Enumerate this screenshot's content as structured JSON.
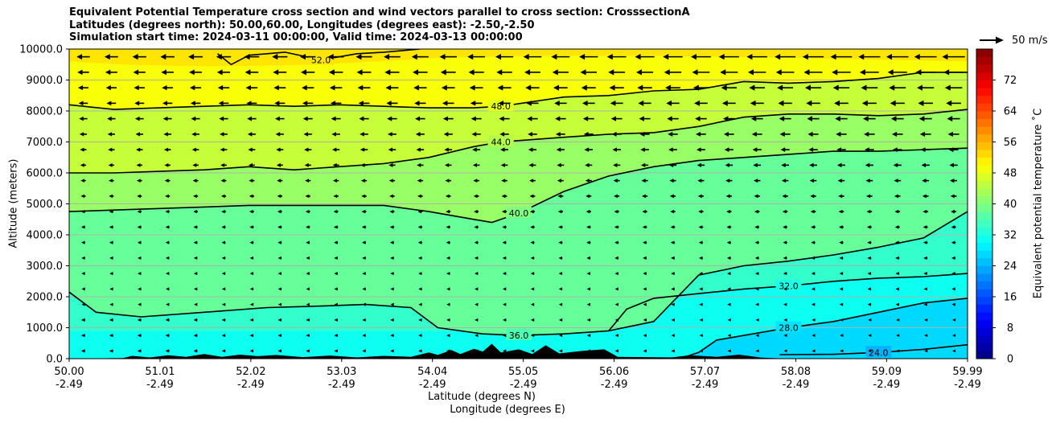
{
  "chart_data": {
    "type": "contourf",
    "title_lines": [
      "Equivalent Potential Temperature cross section and wind vectors parallel to cross section: CrosssectionA",
      "Latitudes (degrees north): 50.00,60.00, Longitudes (degrees east): -2.50,-2.50",
      "Simulation start time: 2024-03-11 00:00:00, Valid time: 2024-03-13 00:00:00"
    ],
    "ylabel": "Altitude (meters)",
    "xlabel_lat": "Latitude (degrees N)",
    "xlabel_lon": "Longitude (degrees E)",
    "ylim": [
      0,
      10000
    ],
    "y_ticks": [
      "0.0",
      "1000.0",
      "2000.0",
      "3000.0",
      "4000.0",
      "5000.0",
      "6000.0",
      "7000.0",
      "8000.0",
      "9000.0",
      "10000.0"
    ],
    "y_tick_values": [
      0,
      1000,
      2000,
      3000,
      4000,
      5000,
      6000,
      7000,
      8000,
      9000,
      10000
    ],
    "xlim": [
      50.0,
      59.99
    ],
    "x_tick_values": [
      50.0,
      51.01,
      52.02,
      53.03,
      54.04,
      55.05,
      56.06,
      57.07,
      58.08,
      59.09,
      59.99
    ],
    "x_ticks_lat": [
      "50.00",
      "51.01",
      "52.02",
      "53.03",
      "54.04",
      "55.05",
      "56.06",
      "57.07",
      "58.08",
      "59.09",
      "59.99"
    ],
    "x_ticks_lon": [
      "-2.49",
      "-2.49",
      "-2.49",
      "-2.49",
      "-2.49",
      "-2.49",
      "-2.49",
      "-2.49",
      "-2.49",
      "-2.49",
      "-2.49"
    ],
    "colorbar": {
      "label": "Equivalent potential temperature $^\\circ$C",
      "label_text": "Equivalent potential temperature ˚C",
      "range": [
        0,
        80
      ],
      "ticks": [
        "0",
        "8",
        "16",
        "24",
        "32",
        "40",
        "48",
        "56",
        "64",
        "72"
      ],
      "tick_values": [
        0,
        8,
        16,
        24,
        32,
        40,
        48,
        56,
        64,
        72
      ]
    },
    "contours": [
      {
        "level": "24.0",
        "label": "24.0",
        "lat": [
          57.9,
          58.5,
          59.0,
          59.5,
          59.99
        ],
        "alt": [
          130,
          140,
          200,
          300,
          450
        ]
      },
      {
        "level": "28.0",
        "label": "28.0",
        "lat": [
          56.85,
          57.0,
          57.2,
          57.6,
          58.0,
          58.5,
          59.0,
          59.5,
          59.99
        ],
        "alt": [
          60,
          200,
          600,
          800,
          1000,
          1200,
          1500,
          1800,
          1950
        ]
      },
      {
        "level": "32.0",
        "label": "32.0",
        "lat": [
          56.0,
          56.2,
          56.5,
          57.0,
          57.5,
          58.0,
          58.5,
          59.0,
          59.5,
          59.99
        ],
        "alt": [
          900,
          1600,
          1950,
          2100,
          2250,
          2350,
          2500,
          2600,
          2650,
          2750
        ]
      },
      {
        "level": "36.0",
        "label": "36.0",
        "lat": [
          50.0,
          50.3,
          50.8,
          51.5,
          52.2,
          52.8,
          53.3,
          53.8,
          54.1,
          54.6,
          55.0,
          55.5,
          56.0,
          56.5,
          57.0,
          57.5,
          58.0,
          58.5,
          59.0,
          59.5,
          59.99
        ],
        "alt": [
          2150,
          1500,
          1350,
          1500,
          1650,
          1700,
          1750,
          1650,
          1000,
          800,
          750,
          800,
          900,
          1200,
          2700,
          3000,
          3150,
          3350,
          3600,
          3900,
          4750
        ]
      },
      {
        "level": "40.0",
        "label": "40.0",
        "lat": [
          50.0,
          50.5,
          51.0,
          51.5,
          52.0,
          52.5,
          53.0,
          53.5,
          54.0,
          54.5,
          54.7,
          55.0,
          55.5,
          56.0,
          56.5,
          57.0,
          57.5,
          58.0,
          58.5,
          59.0,
          59.5,
          59.99
        ],
        "alt": [
          4750,
          4800,
          4850,
          4900,
          4950,
          4950,
          4950,
          4950,
          4750,
          4500,
          4400,
          4700,
          5400,
          5900,
          6200,
          6400,
          6500,
          6600,
          6700,
          6700,
          6750,
          6800
        ]
      },
      {
        "level": "44.0",
        "label": "44.0",
        "lat": [
          50.0,
          50.5,
          51.0,
          51.5,
          52.0,
          52.5,
          53.0,
          53.5,
          54.0,
          54.5,
          54.8,
          55.5,
          56.0,
          56.5,
          57.0,
          57.5,
          58.0,
          58.5,
          59.0,
          59.5,
          59.99
        ],
        "alt": [
          6000,
          6000,
          6050,
          6100,
          6200,
          6100,
          6200,
          6300,
          6500,
          6850,
          7000,
          7150,
          7250,
          7300,
          7500,
          7800,
          7900,
          7900,
          7850,
          7900,
          8050
        ]
      },
      {
        "level": "48.0",
        "label": "48.0",
        "lat": [
          50.0,
          50.5,
          51.0,
          51.5,
          52.0,
          52.5,
          53.0,
          53.5,
          54.0,
          54.5,
          54.8,
          55.5,
          56.0,
          56.5,
          57.0,
          57.5,
          58.0,
          58.5,
          59.0,
          59.5,
          59.99
        ],
        "alt": [
          8200,
          8050,
          8100,
          8150,
          8200,
          8150,
          8200,
          8150,
          8100,
          8100,
          8150,
          8450,
          8500,
          8650,
          8700,
          8950,
          8900,
          8950,
          9050,
          9250,
          9250
        ]
      },
      {
        "level": "52.0",
        "label": "52.0",
        "lat": [
          51.65,
          51.8,
          52.0,
          52.4,
          52.8,
          53.2,
          53.5,
          53.9
        ],
        "alt": [
          9850,
          9500,
          9800,
          9900,
          9650,
          9850,
          9900,
          10000
        ]
      }
    ],
    "wind_scale_label": "50 m/s",
    "wind_vectors": "mostly southward (pointing toward lower latitude), strongest near top of domain"
  },
  "colors": {
    "terrain": "#000000",
    "grid": "#b0b0b0",
    "contour": "#000000"
  }
}
